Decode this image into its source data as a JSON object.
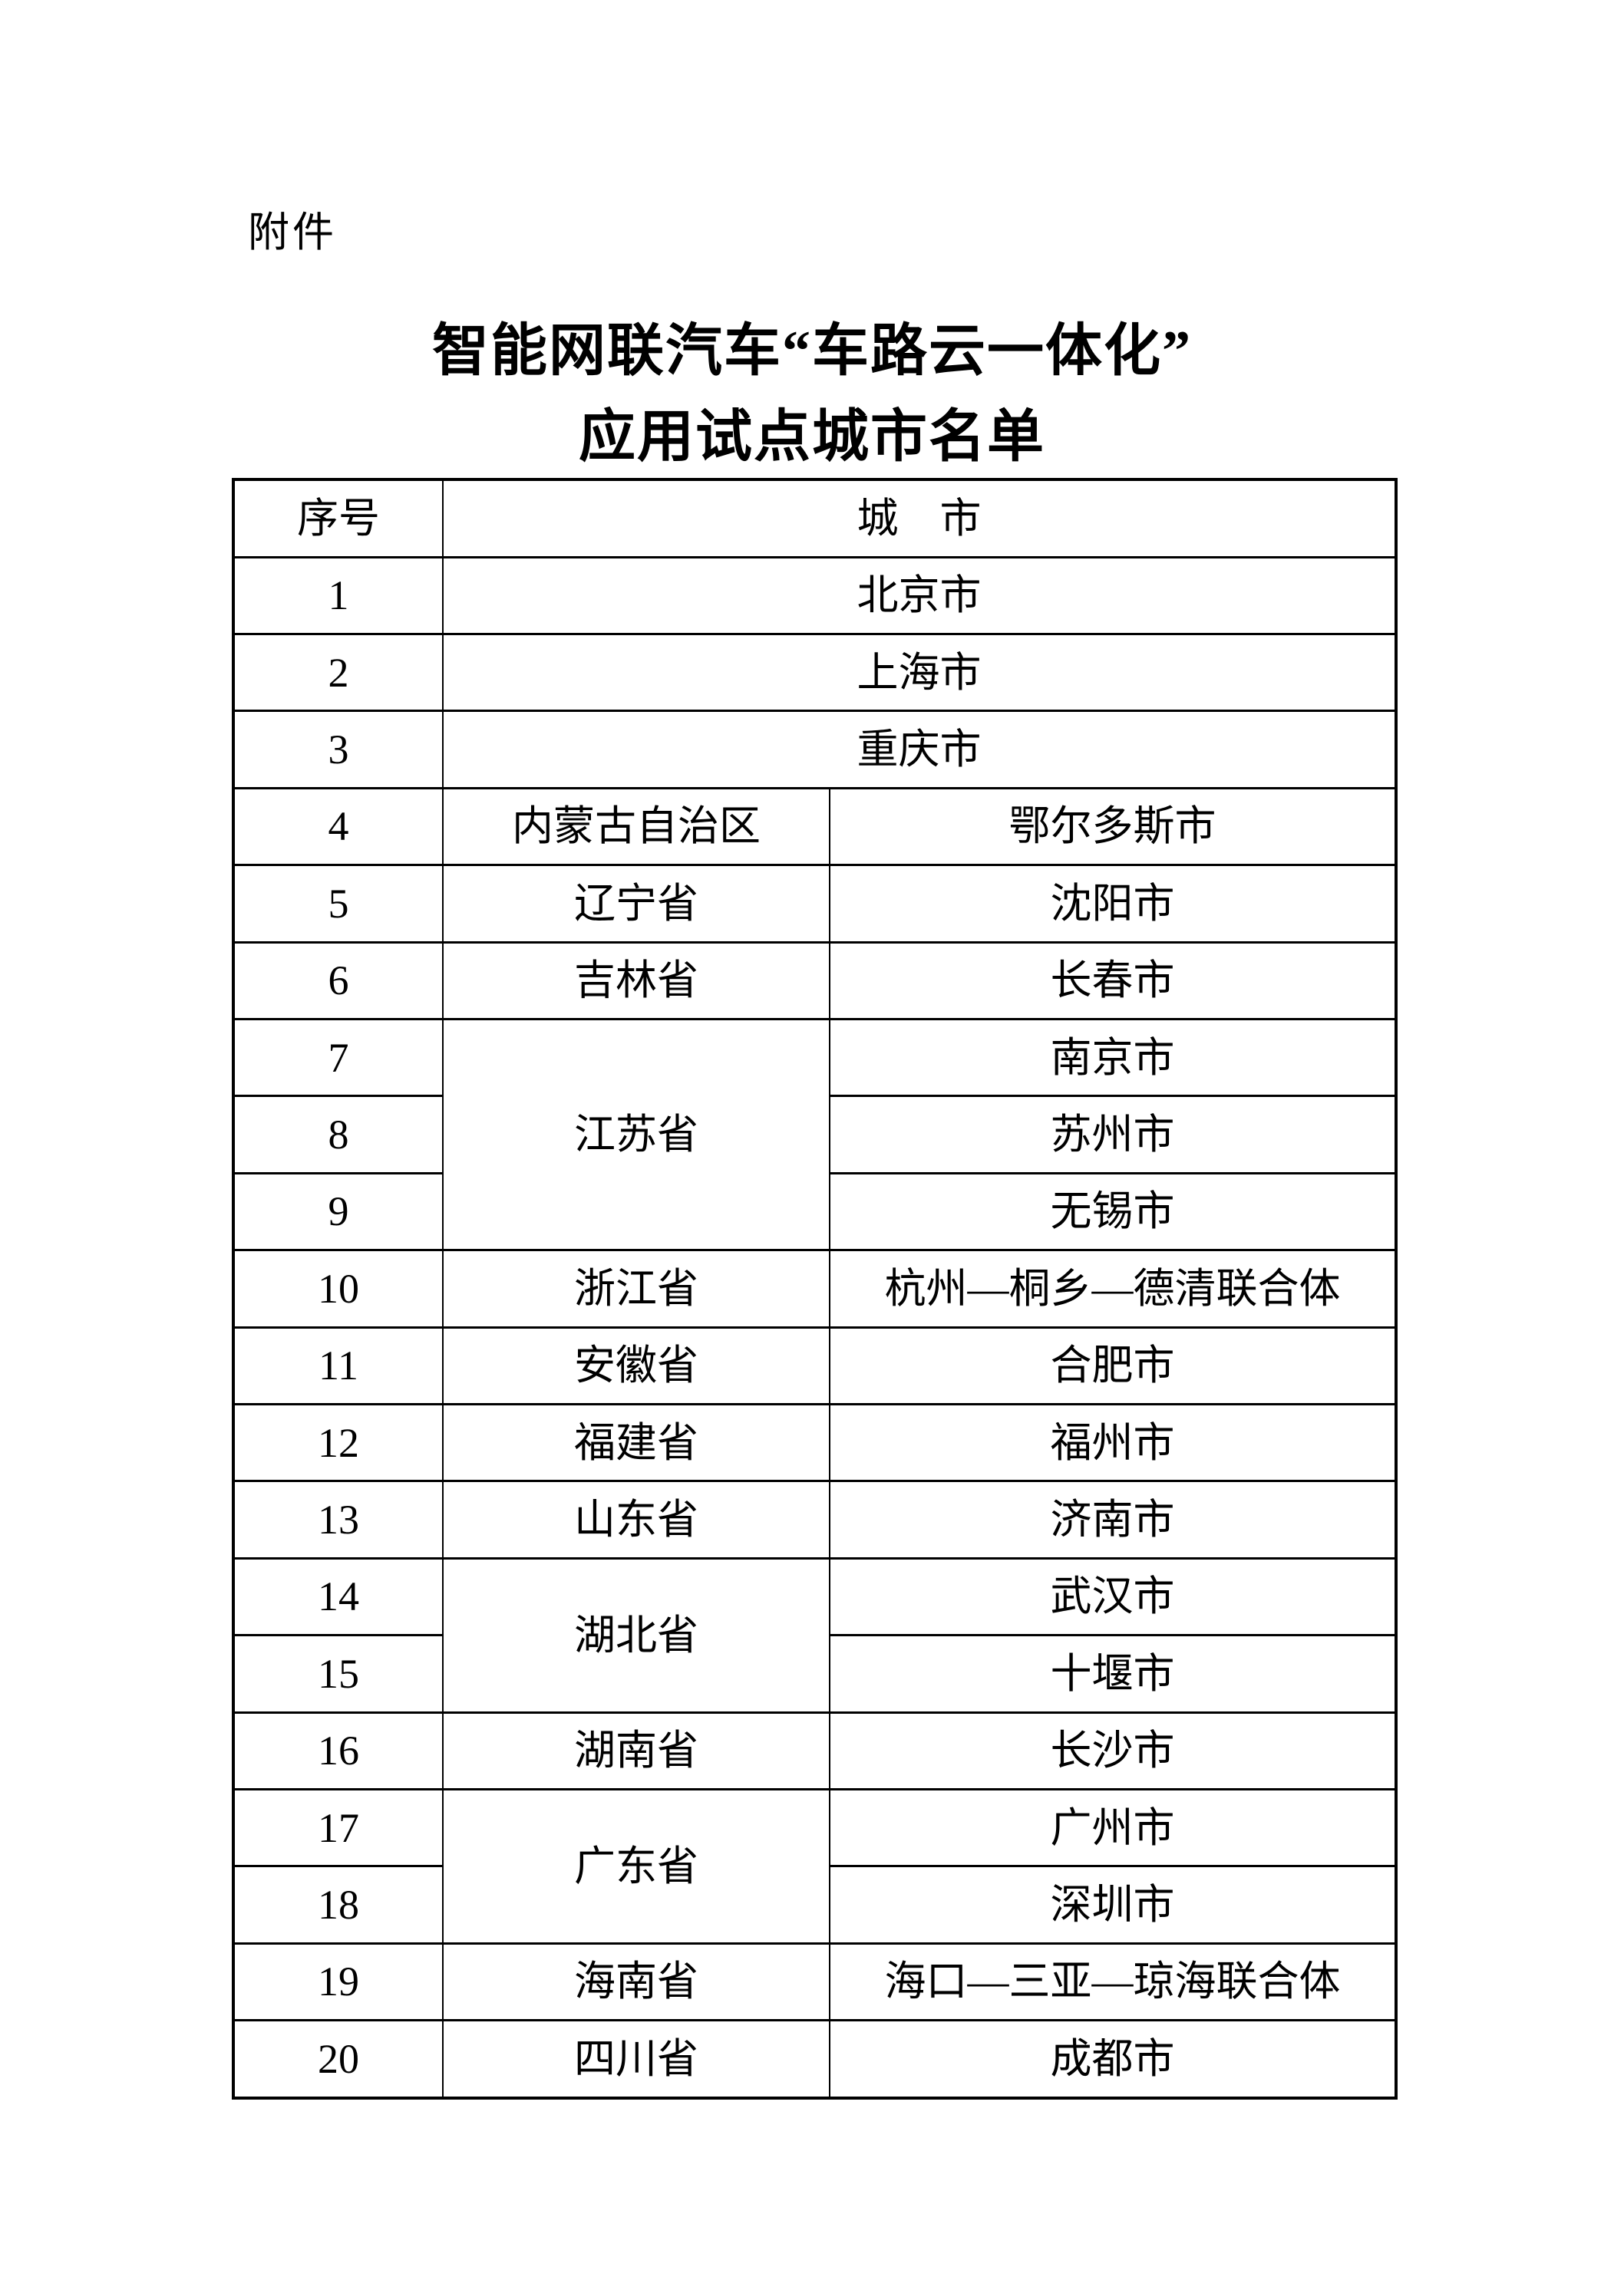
{
  "page": {
    "attachment_label": "附件",
    "title_line1": "智能网联汽车“车路云一体化”",
    "title_line2": "应用试点城市名单",
    "background_color": "#ffffff",
    "text_color": "#000000",
    "border_color": "#000000"
  },
  "table": {
    "header": {
      "no": "序号",
      "city": "城　市"
    },
    "rows": [
      {
        "no": "1",
        "city": "北京市"
      },
      {
        "no": "2",
        "city": "上海市"
      },
      {
        "no": "3",
        "city": "重庆市"
      },
      {
        "no": "4",
        "province": "内蒙古自治区",
        "city": "鄂尔多斯市"
      },
      {
        "no": "5",
        "province": "辽宁省",
        "city": "沈阳市"
      },
      {
        "no": "6",
        "province": "吉林省",
        "city": "长春市"
      },
      {
        "no": "7",
        "province": "江苏省",
        "city": "南京市"
      },
      {
        "no": "8",
        "city": "苏州市"
      },
      {
        "no": "9",
        "city": "无锡市"
      },
      {
        "no": "10",
        "province": "浙江省",
        "city": "杭州—桐乡—德清联合体"
      },
      {
        "no": "11",
        "province": "安徽省",
        "city": "合肥市"
      },
      {
        "no": "12",
        "province": "福建省",
        "city": "福州市"
      },
      {
        "no": "13",
        "province": "山东省",
        "city": "济南市"
      },
      {
        "no": "14",
        "province": "湖北省",
        "city": "武汉市"
      },
      {
        "no": "15",
        "city": "十堰市"
      },
      {
        "no": "16",
        "province": "湖南省",
        "city": "长沙市"
      },
      {
        "no": "17",
        "province": "广东省",
        "city": "广州市"
      },
      {
        "no": "18",
        "city": "深圳市"
      },
      {
        "no": "19",
        "province": "海南省",
        "city": "海口—三亚—琼海联合体"
      },
      {
        "no": "20",
        "province": "四川省",
        "city": "成都市"
      }
    ]
  }
}
